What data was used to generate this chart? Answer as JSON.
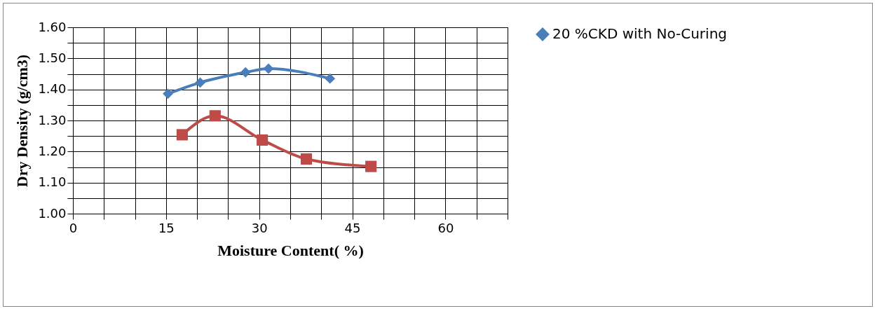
{
  "chart_data": {
    "type": "line",
    "xlabel": "Moisture Content( %)",
    "ylabel": "Dry Density (g/cm3)",
    "xlim": [
      0,
      70
    ],
    "xticks": [
      0,
      {
        "value": 5,
        "label": null
      },
      {
        "value": 10,
        "label": null
      },
      15,
      {
        "value": 20,
        "label": null
      },
      {
        "value": 25,
        "label": null
      },
      30,
      {
        "value": 35,
        "label": null
      },
      {
        "value": 40,
        "label": null
      },
      45,
      {
        "value": 50,
        "label": null
      },
      {
        "value": 55,
        "label": null
      },
      60,
      {
        "value": 65,
        "label": null
      },
      {
        "value": 70,
        "label": null
      }
    ],
    "ylim": [
      1.0,
      1.6
    ],
    "yticks": [
      {
        "value": 1.0,
        "label": "1.00"
      },
      {
        "value": 1.05,
        "label": null
      },
      {
        "value": 1.1,
        "label": "1.10"
      },
      {
        "value": 1.15,
        "label": null
      },
      {
        "value": 1.2,
        "label": "1.20"
      },
      {
        "value": 1.25,
        "label": null
      },
      {
        "value": 1.3,
        "label": "1.30"
      },
      {
        "value": 1.35,
        "label": null
      },
      {
        "value": 1.4,
        "label": "1.40"
      },
      {
        "value": 1.45,
        "label": null
      },
      {
        "value": 1.5,
        "label": "1.50"
      },
      {
        "value": 1.55,
        "label": null
      },
      {
        "value": 1.6,
        "label": "1.60"
      }
    ],
    "grid": true,
    "legend": "right",
    "line_style": "solid",
    "series": [
      {
        "name": "20 %CKD with No-Curing",
        "color": "#4a7ebb",
        "marker": "diamond",
        "x": [
          15.3,
          20.5,
          27.8,
          31.5,
          41.4
        ],
        "values": [
          1.386,
          1.422,
          1.455,
          1.467,
          1.435
        ]
      },
      {
        "color": "#be4b48",
        "marker": "square",
        "x": [
          17.6,
          22.9,
          30.5,
          37.6,
          48.0
        ],
        "values": [
          1.254,
          1.315,
          1.237,
          1.176,
          1.152
        ]
      }
    ]
  }
}
